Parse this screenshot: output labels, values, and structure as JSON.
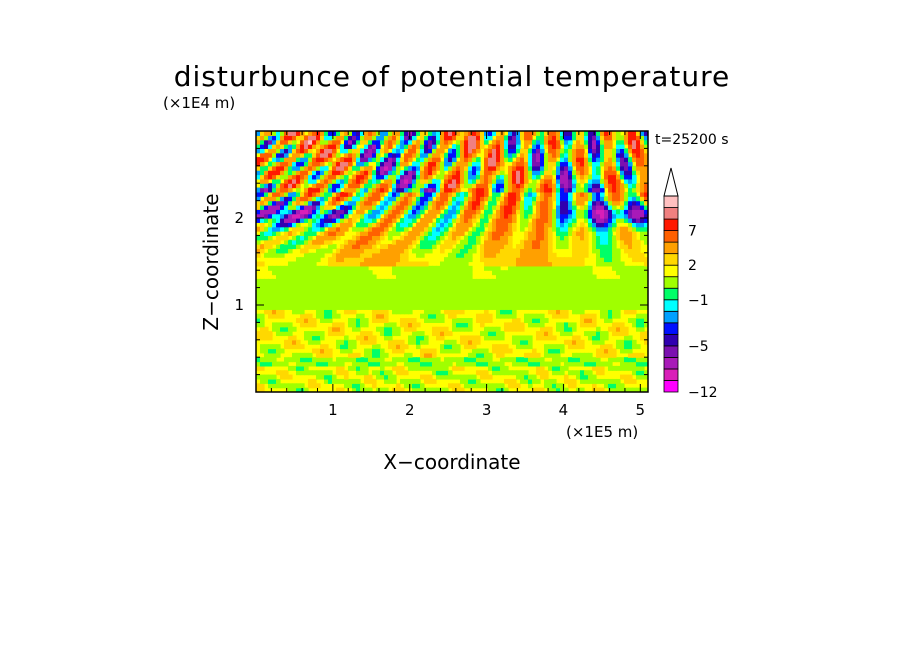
{
  "chart_data": {
    "type": "heatmap",
    "title": "disturbunce of potential temperature",
    "time_label": "t=25200 s",
    "xlabel": "X−coordinate",
    "ylabel": "Z−coordinate",
    "x_unit": "(×1E5 m)",
    "y_unit": "(×1E4 m)",
    "xlim": [
      0,
      5.1
    ],
    "ylim": [
      0,
      3.0
    ],
    "x_ticks": [
      1,
      2,
      3,
      4,
      5
    ],
    "x_tick_labels": [
      "1",
      "2",
      "3",
      "4",
      "5"
    ],
    "y_ticks": [
      1,
      2
    ],
    "y_tick_labels": [
      "1",
      "2"
    ],
    "colorbar": {
      "levels": [
        -12,
        -10,
        -8,
        -6,
        -5,
        -4,
        -3,
        -2,
        -1,
        0,
        1,
        2,
        3,
        5,
        7,
        9,
        11
      ],
      "labeled_levels": [
        {
          "value": 7,
          "label": "7"
        },
        {
          "value": 2,
          "label": "2"
        },
        {
          "value": -1,
          "label": "−1"
        },
        {
          "value": -5,
          "label": "−5"
        },
        {
          "value": -12,
          "label": "−12"
        }
      ],
      "colors": [
        "#ff00ff",
        "#d91eb8",
        "#a81ab8",
        "#7b10b0",
        "#3000b0",
        "#0010ff",
        "#00a0ff",
        "#00ffff",
        "#00ff68",
        "#a0ff00",
        "#ffff00",
        "#ffd800",
        "#ffa000",
        "#ff6000",
        "#ff1800",
        "#f08080",
        "#ffc0c0"
      ],
      "extend_max": true
    }
  }
}
